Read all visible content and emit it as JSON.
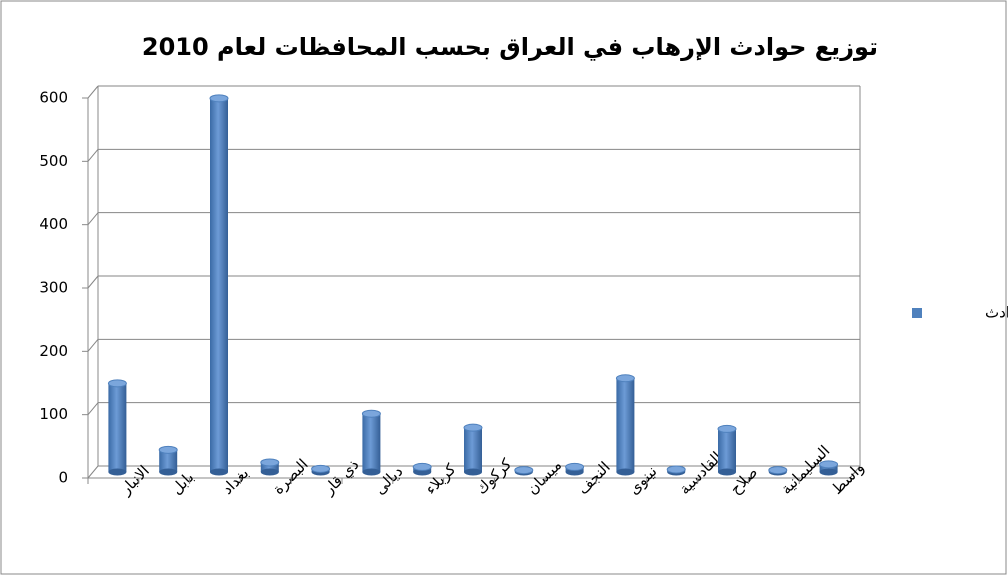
{
  "chart_data": {
    "type": "bar",
    "title": "توزيع حوادث الإرهاب في العراق بحسب المحافظات لعام 2010",
    "categories": [
      "الانبار",
      "بابل",
      "بغداد",
      "البصرة",
      "ذي قار",
      "ديالى",
      "كربلاء",
      "كركوك",
      "ميسان",
      "النجف",
      "نينوى",
      "القادسية",
      "صلاح",
      "السليمانية",
      "واسط"
    ],
    "series": [
      {
        "name": "الحوادث",
        "color": "#4f81bd",
        "values": [
          140,
          35,
          590,
          15,
          5,
          92,
          8,
          70,
          3,
          8,
          148,
          4,
          68,
          3,
          12
        ]
      }
    ],
    "ylim": [
      0,
      600
    ],
    "yticks": [
      0,
      100,
      200,
      300,
      400,
      500,
      600
    ],
    "grid": true,
    "legend": "right"
  }
}
